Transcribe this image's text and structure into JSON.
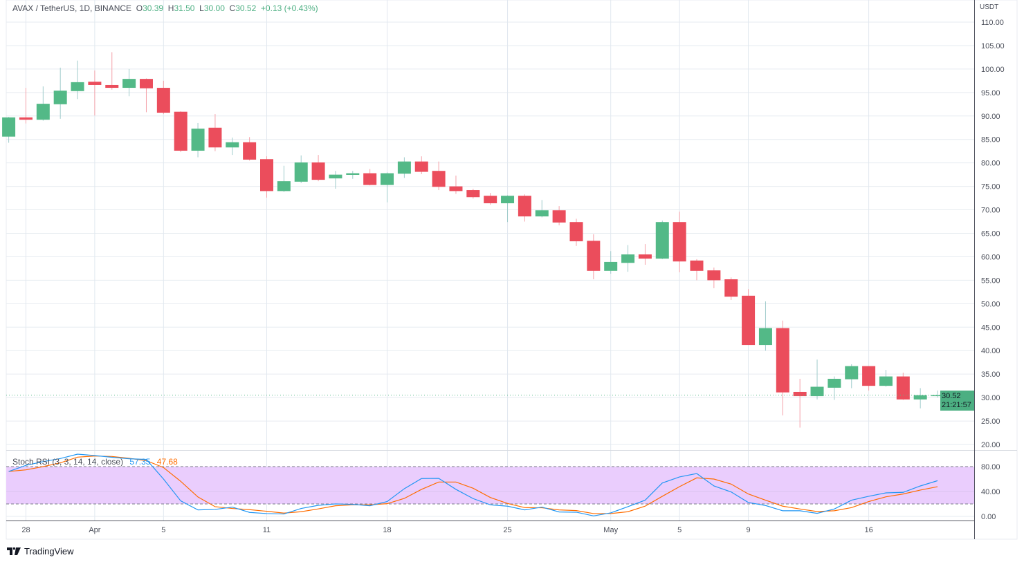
{
  "header": {
    "symbol": "AVAX / TetherUS, 1D, BINANCE",
    "o_label": "O",
    "o_value": "30.39",
    "h_label": "H",
    "h_value": "31.50",
    "l_label": "L",
    "l_value": "30.00",
    "c_label": "C",
    "c_value": "30.52",
    "change": "+0.13 (+0.43%)"
  },
  "price_axis": {
    "unit": "USDT",
    "current_price": "30.52",
    "countdown": "21:21:57"
  },
  "indicator": {
    "name": "Stoch RSI (3, 3, 14, 14, close)",
    "k_value": "57.35",
    "d_value": "47.68"
  },
  "branding": {
    "name": "TradingView"
  },
  "colors": {
    "up": "#53b987",
    "down": "#eb4d5c",
    "up_wick": "#9fcbcb",
    "down_wick": "#f5a0a8",
    "k": "#2196f3",
    "d": "#ff6d00",
    "band": "#eacdfd"
  },
  "chart_data": [
    {
      "type": "candlestick",
      "title": "AVAX / TetherUS, 1D, BINANCE",
      "ylabel": "USDT",
      "ylim": [
        20,
        110
      ],
      "yticks": [
        "110.00",
        "105.00",
        "100.00",
        "95.00",
        "90.00",
        "85.00",
        "80.00",
        "75.00",
        "70.00",
        "65.00",
        "60.00",
        "55.00",
        "50.00",
        "45.00",
        "40.00",
        "35.00",
        "30.00",
        "25.00",
        "20.00"
      ],
      "ytick_values": [
        110,
        105,
        100,
        95,
        90,
        85,
        80,
        75,
        70,
        65,
        60,
        55,
        50,
        45,
        40,
        35,
        30,
        25,
        20
      ],
      "xticks": [
        {
          "index": 1,
          "label": "28"
        },
        {
          "index": 5,
          "label": "Apr"
        },
        {
          "index": 9,
          "label": "5"
        },
        {
          "index": 15,
          "label": "11"
        },
        {
          "index": 22,
          "label": "18"
        },
        {
          "index": 29,
          "label": "25"
        },
        {
          "index": 35,
          "label": "May"
        },
        {
          "index": 39,
          "label": "5"
        },
        {
          "index": 43,
          "label": "9"
        },
        {
          "index": 50,
          "label": "16"
        }
      ],
      "grid": true,
      "columns": [
        "date",
        "open",
        "high",
        "low",
        "close"
      ],
      "candles": [
        [
          "Mar 27",
          85.6,
          89.8,
          84.3,
          89.7
        ],
        [
          "Mar 28",
          89.7,
          96.0,
          88.4,
          89.2
        ],
        [
          "Mar 29",
          89.2,
          96.3,
          89.0,
          92.6
        ],
        [
          "Mar 30",
          92.5,
          100.3,
          89.4,
          95.4
        ],
        [
          "Mar 31",
          95.3,
          101.8,
          93.6,
          97.2
        ],
        [
          "Apr 1",
          97.3,
          99.7,
          90.1,
          96.6
        ],
        [
          "Apr 2",
          96.6,
          103.6,
          95.6,
          96.0
        ],
        [
          "Apr 3",
          96.0,
          100.0,
          94.2,
          97.9
        ],
        [
          "Apr 4",
          97.9,
          98.0,
          90.8,
          95.9
        ],
        [
          "Apr 5",
          96.0,
          97.5,
          90.4,
          90.7
        ],
        [
          "Apr 6",
          90.9,
          91.0,
          82.3,
          82.6
        ],
        [
          "Apr 7",
          82.6,
          88.5,
          81.2,
          87.3
        ],
        [
          "Apr 8",
          87.5,
          90.4,
          82.5,
          83.3
        ],
        [
          "Apr 9",
          83.3,
          85.4,
          81.7,
          84.4
        ],
        [
          "Apr 10",
          84.4,
          85.5,
          80.5,
          80.7
        ],
        [
          "Apr 11",
          80.8,
          81.4,
          72.6,
          74.0
        ],
        [
          "Apr 12",
          74.0,
          79.4,
          73.8,
          76.1
        ],
        [
          "Apr 13",
          76.0,
          81.6,
          75.7,
          80.1
        ],
        [
          "Apr 14",
          80.1,
          81.7,
          76.1,
          76.4
        ],
        [
          "Apr 15",
          76.7,
          78.3,
          74.5,
          77.5
        ],
        [
          "Apr 16",
          77.45,
          78.3,
          76.6,
          77.8
        ],
        [
          "Apr 17",
          77.8,
          78.7,
          75.2,
          75.3
        ],
        [
          "Apr 18",
          75.3,
          78.0,
          71.6,
          77.8
        ],
        [
          "Apr 19",
          77.7,
          81.2,
          76.8,
          80.3
        ],
        [
          "Apr 20",
          80.3,
          81.4,
          77.6,
          78.1
        ],
        [
          "Apr 21",
          78.3,
          80.3,
          74.2,
          74.9
        ],
        [
          "Apr 22",
          75.0,
          77.3,
          73.4,
          74.0
        ],
        [
          "Apr 23",
          74.2,
          74.5,
          72.4,
          72.7
        ],
        [
          "Apr 24",
          73.0,
          73.6,
          71.1,
          71.4
        ],
        [
          "Apr 25",
          71.4,
          73.1,
          67.4,
          73.0
        ],
        [
          "Apr 26",
          73.0,
          73.3,
          67.5,
          68.6
        ],
        [
          "Apr 27",
          68.6,
          72.1,
          68.4,
          69.9
        ],
        [
          "Apr 28",
          69.9,
          70.8,
          66.7,
          67.3
        ],
        [
          "Apr 29",
          67.4,
          68.1,
          62.3,
          63.3
        ],
        [
          "Apr 30",
          63.4,
          64.8,
          55.2,
          57.0
        ],
        [
          "May 1",
          57.0,
          61.2,
          56.4,
          58.9
        ],
        [
          "May 2",
          58.7,
          62.5,
          56.8,
          60.5
        ],
        [
          "May 3",
          60.5,
          62.7,
          58.3,
          59.6
        ],
        [
          "May 4",
          59.6,
          67.7,
          59.5,
          67.4
        ],
        [
          "May 5",
          67.4,
          69.6,
          56.7,
          59.0
        ],
        [
          "May 6",
          59.2,
          59.5,
          55.0,
          57.0
        ],
        [
          "May 7",
          57.1,
          57.7,
          53.3,
          55.0
        ],
        [
          "May 8",
          55.2,
          55.6,
          50.8,
          51.5
        ],
        [
          "May 9",
          51.7,
          53.1,
          41.2,
          41.2
        ],
        [
          "May 10",
          41.2,
          50.5,
          40.0,
          44.8
        ],
        [
          "May 11",
          44.8,
          46.4,
          26.2,
          31.1
        ],
        [
          "May 12",
          31.2,
          34.0,
          23.6,
          30.3
        ],
        [
          "May 13",
          30.3,
          38.1,
          29.6,
          32.3
        ],
        [
          "May 14",
          32.1,
          34.5,
          29.5,
          34.0
        ],
        [
          "May 15",
          33.9,
          37.1,
          32.0,
          36.7
        ],
        [
          "May 16",
          36.7,
          36.7,
          31.5,
          32.5
        ],
        [
          "May 17",
          32.5,
          35.9,
          32.3,
          34.5
        ],
        [
          "May 18",
          34.5,
          35.3,
          29.5,
          29.6
        ],
        [
          "May 19",
          29.6,
          32.0,
          27.7,
          30.5
        ],
        [
          "May 20",
          30.39,
          31.5,
          30.0,
          30.52
        ]
      ],
      "last_price": 30.52
    },
    {
      "type": "line",
      "title": "Stoch RSI (3, 3, 14, 14, close)",
      "ylim": [
        0,
        100
      ],
      "yticks": [
        "80.00",
        "40.00",
        "0.00"
      ],
      "ytick_values": [
        80,
        40,
        0
      ],
      "bands": {
        "upper": 80,
        "lower": 20
      },
      "series": [
        {
          "name": "K",
          "values": [
            72.2,
            82,
            88,
            93,
            100,
            97.8,
            95,
            92.6,
            91.5,
            60,
            24.9,
            10.4,
            11.2,
            14.9,
            6.4,
            4.5,
            3.8,
            12.7,
            17.8,
            20,
            19.3,
            17.1,
            23.8,
            44.5,
            60.8,
            61.1,
            43.4,
            28.6,
            18.6,
            16.4,
            10.4,
            14.9,
            7.1,
            6.7,
            0.8,
            5.6,
            15.6,
            26,
            53.7,
            63.4,
            68.9,
            48.9,
            39.3,
            22.3,
            17.5,
            9,
            9,
            4.9,
            11.9,
            26,
            32.3,
            37.8,
            38.6,
            48.9,
            57.35
          ]
        },
        {
          "name": "D",
          "values": [
            72.2,
            74.8,
            80,
            86,
            95.2,
            97,
            96.3,
            93.3,
            89.6,
            78.5,
            56.3,
            31.2,
            15.6,
            12.7,
            10.8,
            8.2,
            5.3,
            7.5,
            12,
            17.1,
            18.6,
            18.6,
            20.4,
            28.9,
            43.4,
            55.2,
            55.2,
            45.2,
            30.4,
            20.8,
            14.1,
            13.8,
            10.4,
            9.3,
            4.5,
            4.5,
            7.5,
            16.4,
            32.3,
            47.8,
            61.9,
            60,
            51.9,
            36,
            26,
            16.4,
            11.9,
            7.8,
            9,
            14.1,
            23.8,
            31.5,
            36,
            42.3,
            47.68
          ]
        }
      ]
    }
  ]
}
